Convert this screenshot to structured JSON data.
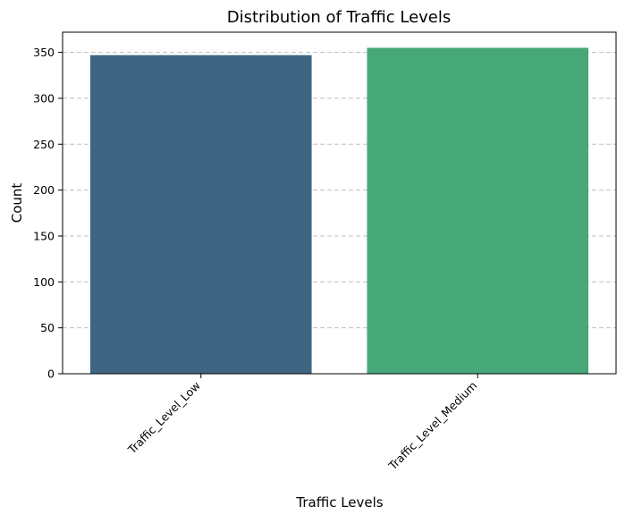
{
  "chart_data": {
    "type": "bar",
    "title": "Distribution of Traffic Levels",
    "xlabel": "Traffic Levels",
    "ylabel": "Count",
    "categories": [
      "Traffic_Level_Low",
      "Traffic_Level_Medium"
    ],
    "values": [
      347,
      355
    ],
    "ylim": [
      0,
      372
    ],
    "yticks": [
      0,
      50,
      100,
      150,
      200,
      250,
      300,
      350
    ],
    "grid": "y-dashed",
    "legend": "none",
    "bar_colors": [
      "#3e6682",
      "#46a878"
    ]
  }
}
